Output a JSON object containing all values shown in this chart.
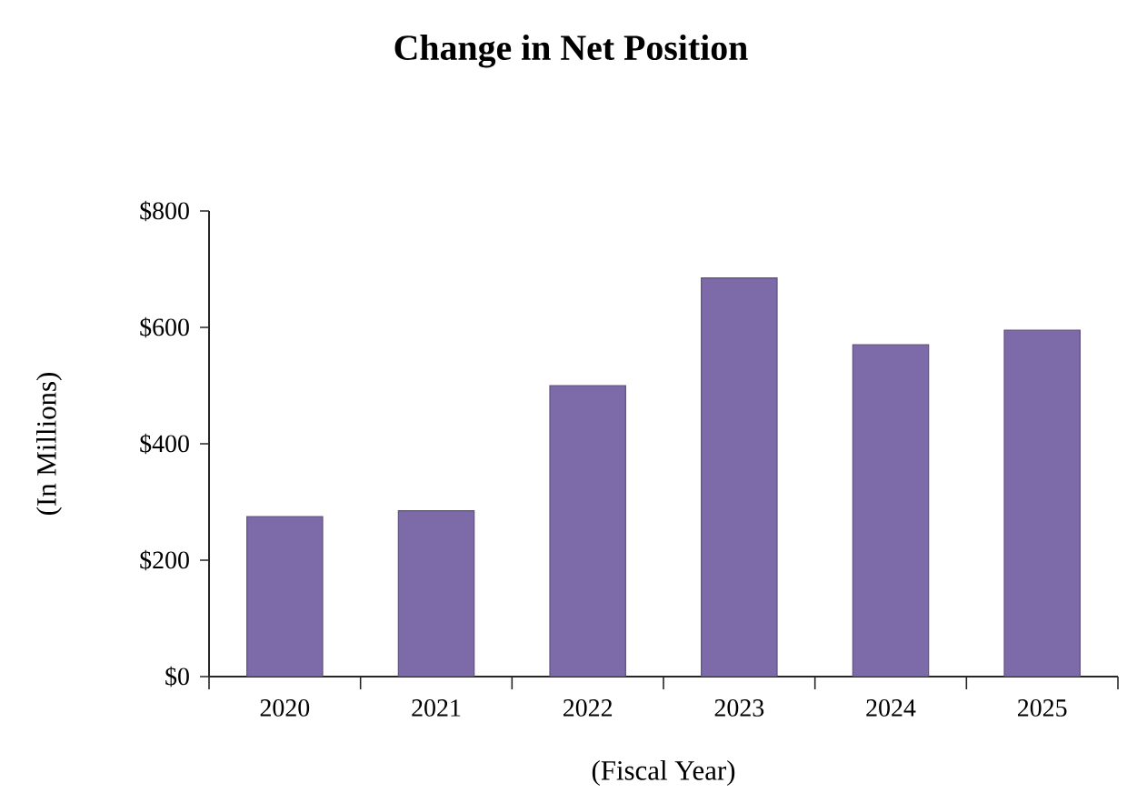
{
  "chart_data": {
    "type": "bar",
    "title": "Change in Net Position",
    "xlabel": "(Fiscal Year)",
    "ylabel": "(In Millions)",
    "categories": [
      "2020",
      "2021",
      "2022",
      "2023",
      "2024",
      "2025"
    ],
    "values": [
      275,
      285,
      500,
      685,
      570,
      595
    ],
    "color": "#7d6aa8",
    "ylim": [
      0,
      800
    ],
    "yticks": [
      {
        "value": 0,
        "label": "$0"
      },
      {
        "value": 200,
        "label": "$200"
      },
      {
        "value": 400,
        "label": "$400"
      },
      {
        "value": 600,
        "label": "$600"
      },
      {
        "value": 800,
        "label": "$800"
      }
    ]
  }
}
